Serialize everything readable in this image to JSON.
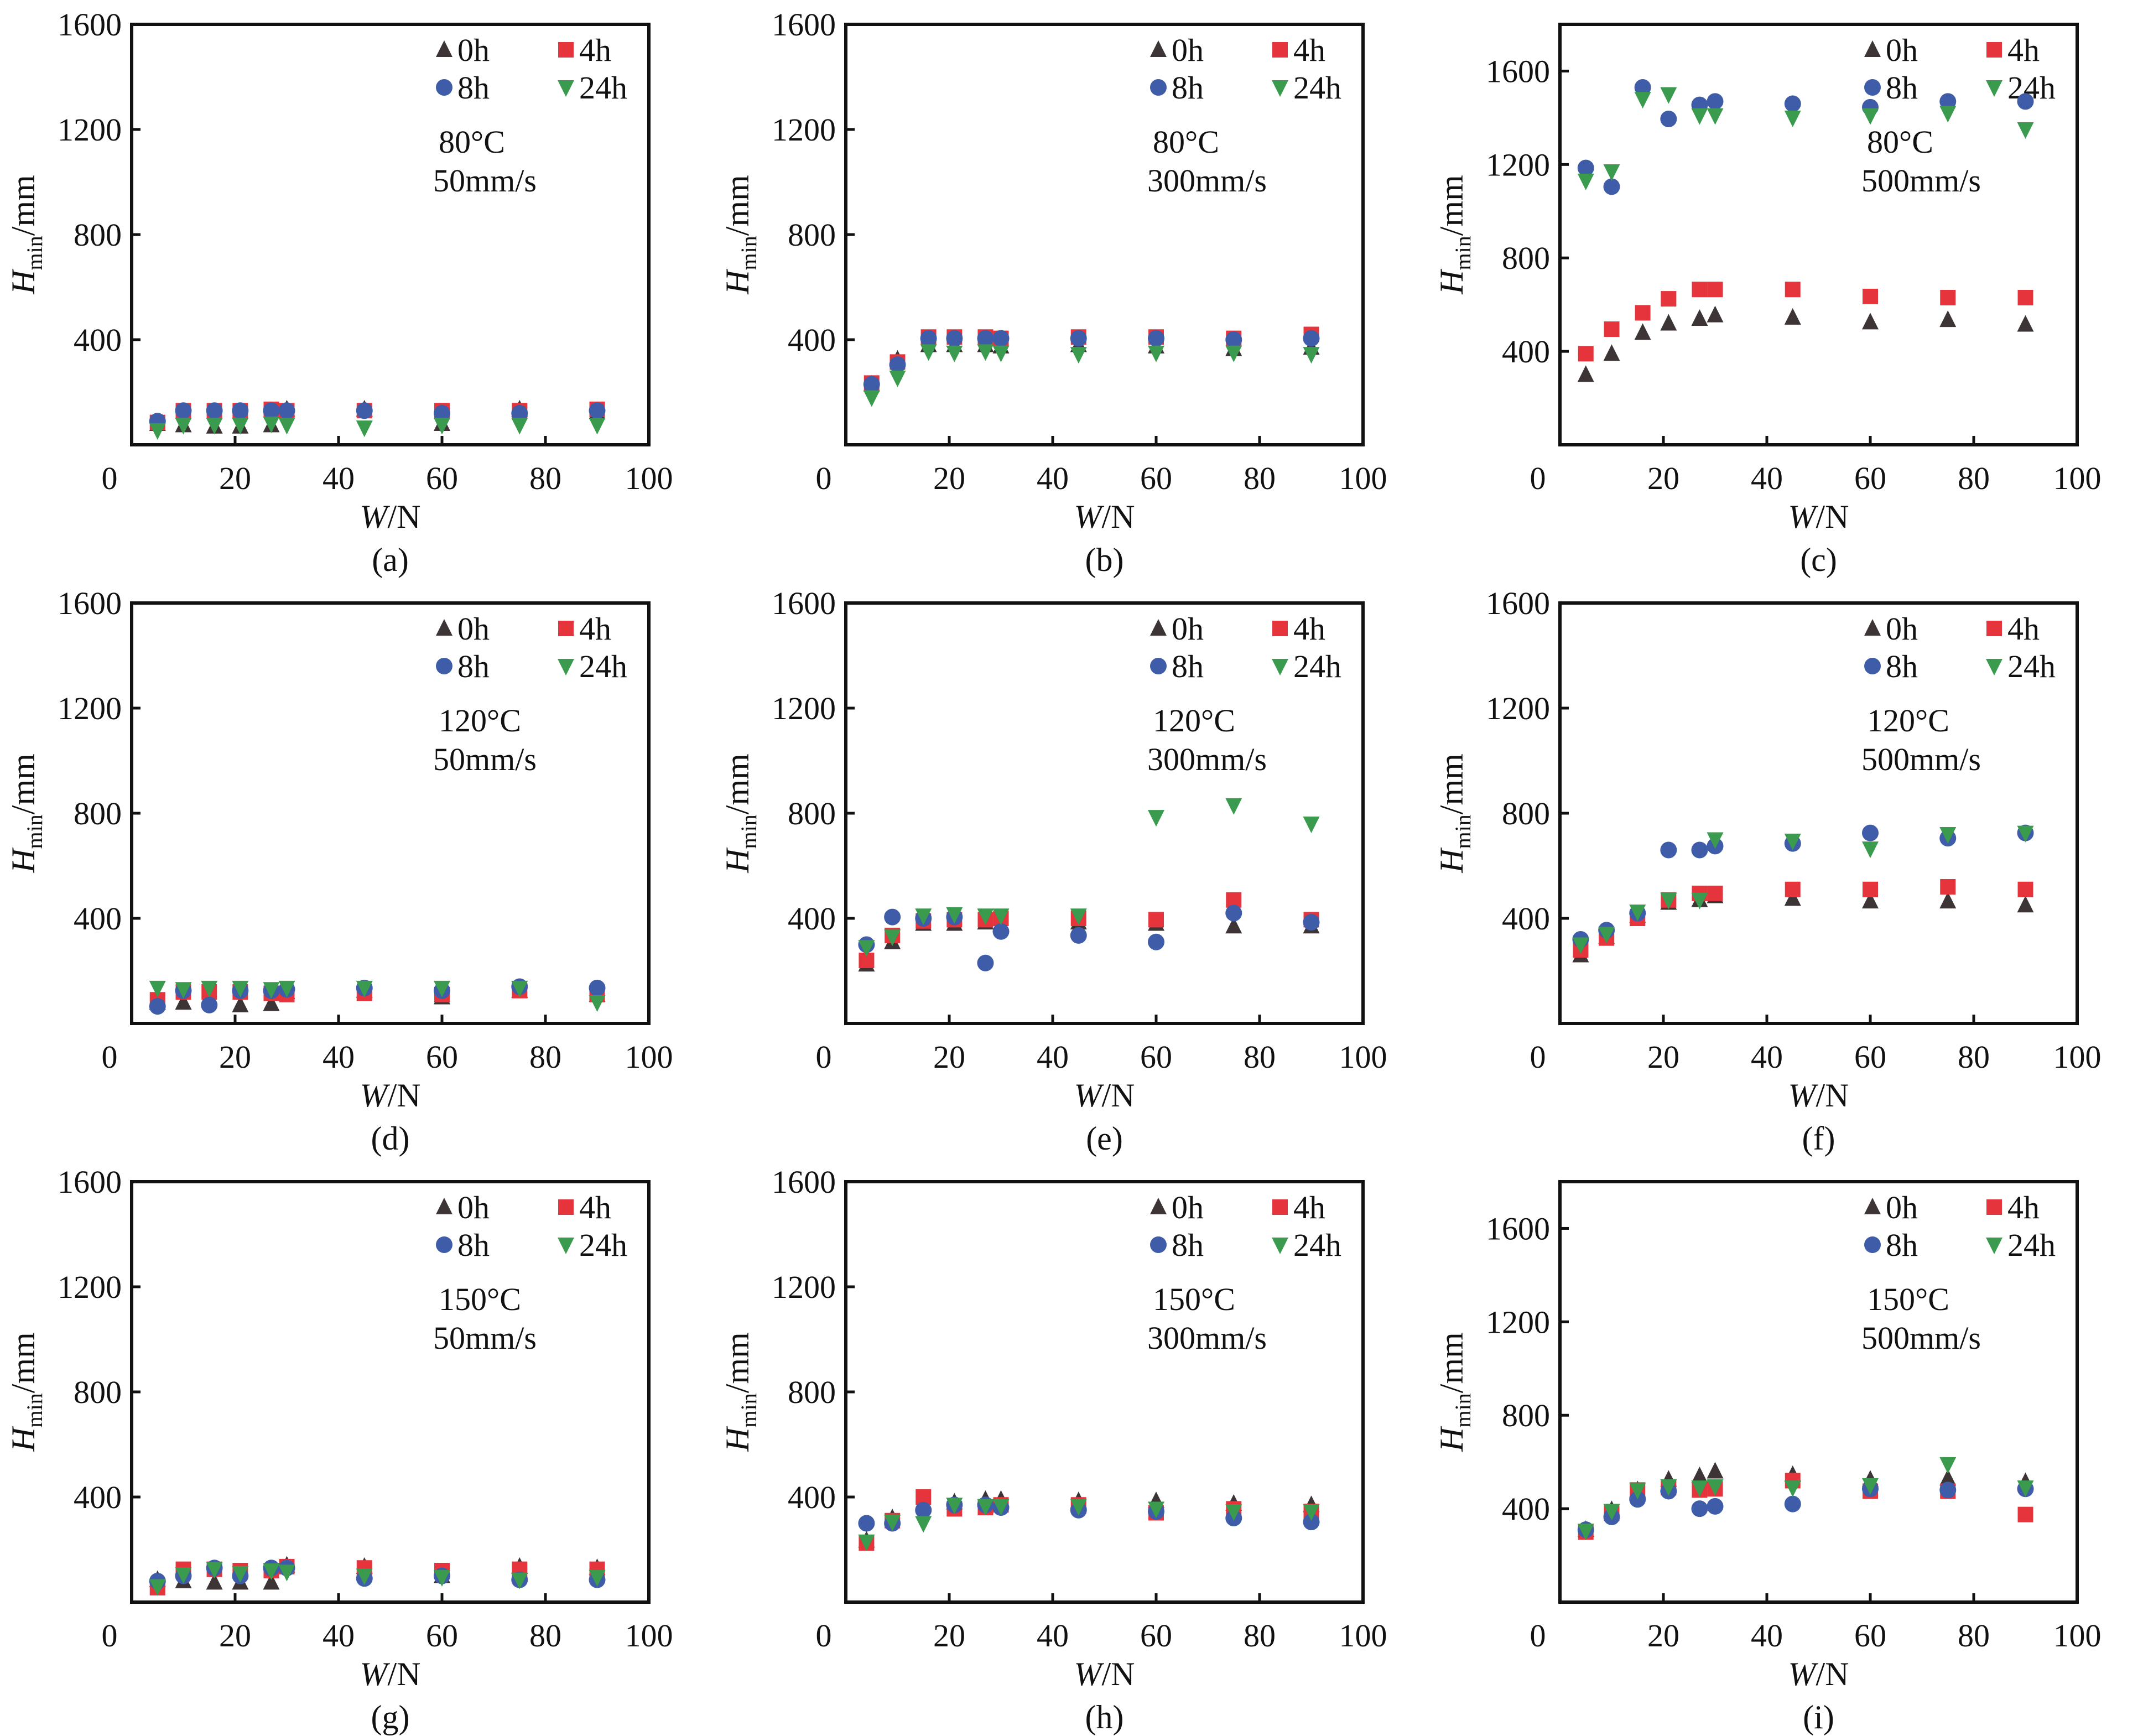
{
  "figure": {
    "legend_labels": [
      "0h",
      "4h",
      "8h",
      "24h"
    ],
    "series_colors": {
      "0h": "#3d3535",
      "4h": "#e5343c",
      "8h": "#3e5ca8",
      "24h": "#3a9a4e"
    },
    "series_markers": {
      "0h": "triangle-up",
      "4h": "square",
      "8h": "circle",
      "24h": "triangle-down"
    }
  },
  "chart_data": [
    {
      "panel": "(a)",
      "type": "scatter",
      "condition_temp": "80°C",
      "condition_speed": "50mm/s",
      "xlabel": "W/N",
      "ylabel": "Hmin/mm",
      "xlim": [
        0,
        100
      ],
      "ylim": [
        0,
        1600
      ],
      "xticks": [
        0,
        20,
        40,
        60,
        80,
        100
      ],
      "yticks": [
        400,
        800,
        1200,
        1600
      ],
      "grid": false,
      "legend": "top-right",
      "x": [
        5,
        10,
        16,
        21,
        27,
        30,
        45,
        60,
        75,
        90
      ],
      "series": [
        {
          "name": "0h",
          "values": [
            80,
            75,
            70,
            70,
            75,
            135,
            135,
            80,
            135,
            125
          ]
        },
        {
          "name": "4h",
          "values": [
            85,
            130,
            130,
            130,
            135,
            130,
            130,
            130,
            130,
            135
          ]
        },
        {
          "name": "8h",
          "values": [
            90,
            130,
            130,
            130,
            130,
            130,
            130,
            120,
            120,
            130
          ]
        },
        {
          "name": "24h",
          "values": [
            55,
            75,
            75,
            75,
            80,
            75,
            65,
            75,
            75,
            75
          ]
        }
      ]
    },
    {
      "panel": "(b)",
      "type": "scatter",
      "condition_temp": "80°C",
      "condition_speed": "300mm/s",
      "xlabel": "W/N",
      "ylabel": "Hmin/mm",
      "xlim": [
        0,
        100
      ],
      "ylim": [
        0,
        1600
      ],
      "xticks": [
        0,
        20,
        40,
        60,
        80,
        100
      ],
      "yticks": [
        400,
        800,
        1200,
        1600
      ],
      "grid": false,
      "legend": "top-right",
      "x": [
        5,
        10,
        16,
        21,
        27,
        30,
        45,
        60,
        75,
        90
      ],
      "series": [
        {
          "name": "0h",
          "values": [
            230,
            325,
            380,
            380,
            380,
            375,
            380,
            375,
            365,
            370
          ]
        },
        {
          "name": "4h",
          "values": [
            235,
            315,
            410,
            410,
            410,
            405,
            410,
            410,
            405,
            420
          ]
        },
        {
          "name": "8h",
          "values": [
            230,
            305,
            405,
            405,
            405,
            405,
            405,
            405,
            400,
            405
          ]
        },
        {
          "name": "24h",
          "values": [
            180,
            255,
            355,
            350,
            355,
            350,
            345,
            350,
            350,
            345
          ]
        }
      ]
    },
    {
      "panel": "(c)",
      "type": "scatter",
      "condition_temp": "80°C",
      "condition_speed": "500mm/s",
      "xlabel": "W/N",
      "ylabel": "Hmin/mm",
      "xlim": [
        0,
        100
      ],
      "ylim": [
        0,
        1800
      ],
      "xticks": [
        0,
        20,
        40,
        60,
        80,
        100
      ],
      "yticks": [
        400,
        800,
        1200,
        1600
      ],
      "grid": false,
      "legend": "top-right",
      "x": [
        5,
        10,
        16,
        21,
        27,
        30,
        45,
        60,
        75,
        90
      ],
      "series": [
        {
          "name": "0h",
          "values": [
            300,
            390,
            480,
            520,
            540,
            555,
            545,
            525,
            535,
            515
          ]
        },
        {
          "name": "4h",
          "values": [
            390,
            495,
            565,
            625,
            665,
            665,
            665,
            635,
            630,
            630
          ]
        },
        {
          "name": "8h",
          "values": [
            1185,
            1105,
            1530,
            1395,
            1455,
            1470,
            1460,
            1445,
            1470,
            1470
          ]
        },
        {
          "name": "24h",
          "values": [
            1130,
            1170,
            1480,
            1500,
            1410,
            1410,
            1400,
            1410,
            1420,
            1350
          ]
        }
      ]
    },
    {
      "panel": "(d)",
      "type": "scatter",
      "condition_temp": "120°C",
      "condition_speed": "50mm/s",
      "xlabel": "W/N",
      "ylabel": "Hmin/mm",
      "xlim": [
        0,
        100
      ],
      "ylim": [
        0,
        1600
      ],
      "xticks": [
        0,
        20,
        40,
        60,
        80,
        100
      ],
      "yticks": [
        400,
        800,
        1200,
        1600
      ],
      "grid": false,
      "legend": "top-right",
      "x": [
        5,
        10,
        15,
        21,
        27,
        30,
        45,
        60,
        75,
        90
      ],
      "series": [
        {
          "name": "0h",
          "values": [
            80,
            80,
            100,
            70,
            75,
            120,
            125,
            100,
            125,
            110
          ]
        },
        {
          "name": "4h",
          "values": [
            90,
            120,
            120,
            120,
            115,
            110,
            115,
            110,
            125,
            110
          ]
        },
        {
          "name": "8h",
          "values": [
            65,
            125,
            70,
            125,
            125,
            130,
            135,
            125,
            140,
            135
          ]
        },
        {
          "name": "24h",
          "values": [
            135,
            130,
            135,
            135,
            130,
            135,
            135,
            135,
            135,
            80
          ]
        }
      ]
    },
    {
      "panel": "(e)",
      "type": "scatter",
      "condition_temp": "120°C",
      "condition_speed": "300mm/s",
      "xlabel": "W/N",
      "ylabel": "Hmin/mm",
      "xlim": [
        0,
        100
      ],
      "ylim": [
        0,
        1600
      ],
      "xticks": [
        0,
        20,
        40,
        60,
        80,
        100
      ],
      "yticks": [
        400,
        800,
        1200,
        1600
      ],
      "grid": false,
      "legend": "top-right",
      "x": [
        4,
        9,
        15,
        21,
        27,
        30,
        45,
        60,
        75,
        90
      ],
      "series": [
        {
          "name": "0h",
          "values": [
            225,
            310,
            380,
            380,
            385,
            375,
            385,
            380,
            370,
            370
          ]
        },
        {
          "name": "4h",
          "values": [
            240,
            335,
            390,
            395,
            395,
            400,
            400,
            395,
            470,
            395
          ]
        },
        {
          "name": "8h",
          "values": [
            300,
            405,
            400,
            405,
            230,
            350,
            335,
            310,
            420,
            385
          ]
        },
        {
          "name": "24h",
          "values": [
            290,
            330,
            410,
            415,
            410,
            410,
            410,
            785,
            830,
            760
          ]
        }
      ]
    },
    {
      "panel": "(f)",
      "type": "scatter",
      "condition_temp": "120°C",
      "condition_speed": "500mm/s",
      "xlabel": "W/N",
      "ylabel": "Hmin/mm",
      "xlim": [
        0,
        100
      ],
      "ylim": [
        0,
        1600
      ],
      "xticks": [
        0,
        20,
        40,
        60,
        80,
        100
      ],
      "yticks": [
        400,
        800,
        1200,
        1600
      ],
      "grid": false,
      "legend": "top-right",
      "x": [
        4,
        9,
        15,
        21,
        27,
        30,
        45,
        60,
        75,
        90
      ],
      "series": [
        {
          "name": "0h",
          "values": [
            260,
            330,
            410,
            460,
            470,
            485,
            475,
            465,
            465,
            450
          ]
        },
        {
          "name": "4h",
          "values": [
            280,
            325,
            400,
            470,
            495,
            495,
            510,
            510,
            520,
            510
          ]
        },
        {
          "name": "8h",
          "values": [
            320,
            355,
            420,
            660,
            660,
            675,
            685,
            725,
            705,
            725
          ]
        },
        {
          "name": "24h",
          "values": [
            300,
            340,
            425,
            470,
            470,
            700,
            695,
            665,
            720,
            725
          ]
        }
      ]
    },
    {
      "panel": "(g)",
      "type": "scatter",
      "condition_temp": "150°C",
      "condition_speed": "50mm/s",
      "xlabel": "W/N",
      "ylabel": "Hmin/mm",
      "xlim": [
        0,
        100
      ],
      "ylim": [
        0,
        1600
      ],
      "xticks": [
        0,
        20,
        40,
        60,
        80,
        100
      ],
      "yticks": [
        400,
        800,
        1200,
        1600
      ],
      "grid": false,
      "legend": "top-right",
      "x": [
        5,
        10,
        16,
        21,
        27,
        30,
        45,
        60,
        75,
        90
      ],
      "series": [
        {
          "name": "0h",
          "values": [
            85,
            80,
            75,
            75,
            75,
            140,
            135,
            100,
            135,
            130
          ]
        },
        {
          "name": "4h",
          "values": [
            55,
            125,
            125,
            120,
            120,
            135,
            130,
            120,
            125,
            125
          ]
        },
        {
          "name": "8h",
          "values": [
            80,
            100,
            130,
            100,
            130,
            130,
            90,
            100,
            85,
            85
          ]
        },
        {
          "name": "24h",
          "values": [
            60,
            105,
            125,
            110,
            120,
            115,
            100,
            95,
            85,
            95
          ]
        }
      ]
    },
    {
      "panel": "(h)",
      "type": "scatter",
      "condition_temp": "150°C",
      "condition_speed": "300mm/s",
      "xlabel": "W/N",
      "ylabel": "Hmin/mm",
      "xlim": [
        0,
        100
      ],
      "ylim": [
        0,
        1600
      ],
      "xticks": [
        0,
        20,
        40,
        60,
        80,
        100
      ],
      "yticks": [
        400,
        800,
        1200,
        1600
      ],
      "grid": false,
      "legend": "top-right",
      "x": [
        4,
        9,
        15,
        21,
        27,
        30,
        45,
        60,
        75,
        90
      ],
      "series": [
        {
          "name": "0h",
          "values": [
            235,
            320,
            370,
            380,
            390,
            390,
            385,
            385,
            375,
            370
          ]
        },
        {
          "name": "4h",
          "values": [
            225,
            310,
            400,
            355,
            360,
            370,
            370,
            340,
            355,
            345
          ]
        },
        {
          "name": "8h",
          "values": [
            300,
            300,
            350,
            370,
            370,
            360,
            350,
            345,
            320,
            305
          ]
        },
        {
          "name": "24h",
          "values": [
            230,
            305,
            300,
            370,
            365,
            365,
            365,
            355,
            345,
            345
          ]
        }
      ]
    },
    {
      "panel": "(i)",
      "type": "scatter",
      "condition_temp": "150°C",
      "condition_speed": "500mm/s",
      "xlabel": "W/N",
      "ylabel": "Hmin/mm",
      "xlim": [
        0,
        100
      ],
      "ylim": [
        0,
        1800
      ],
      "xticks": [
        0,
        20,
        40,
        60,
        80,
        100
      ],
      "yticks": [
        400,
        800,
        1200,
        1600
      ],
      "grid": false,
      "legend": "top-right",
      "x": [
        5,
        10,
        15,
        21,
        27,
        30,
        45,
        60,
        75,
        90
      ],
      "series": [
        {
          "name": "0h",
          "values": [
            310,
            395,
            480,
            525,
            540,
            560,
            545,
            525,
            530,
            515
          ]
        },
        {
          "name": "4h",
          "values": [
            300,
            380,
            480,
            490,
            480,
            485,
            520,
            475,
            475,
            375
          ]
        },
        {
          "name": "8h",
          "values": [
            310,
            365,
            440,
            475,
            400,
            410,
            420,
            485,
            480,
            485
          ]
        },
        {
          "name": "24h",
          "values": [
            305,
            390,
            480,
            495,
            490,
            495,
            490,
            500,
            590,
            490
          ]
        }
      ]
    }
  ]
}
